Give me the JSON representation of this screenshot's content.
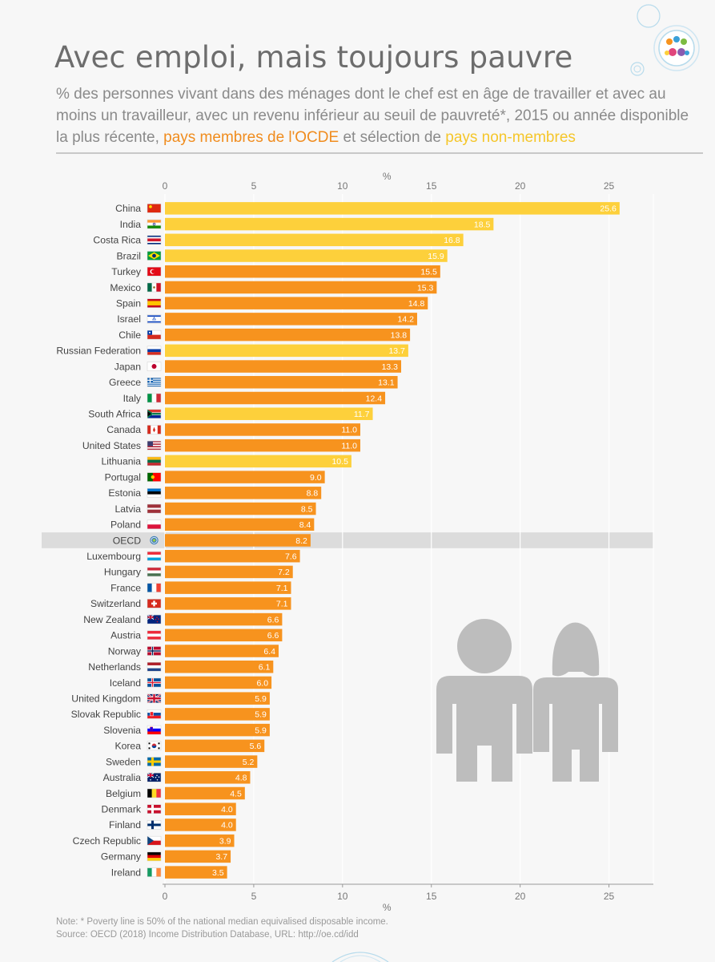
{
  "header": {
    "title": "Avec emploi, mais toujours pauvre",
    "subtitle_part1": "% des personnes vivant dans des ménages dont le chef est en âge de travailler et avec au moins un travailleur, avec un revenu inférieur au seuil de pauvreté*, 2015 ou année disponible la plus récente, ",
    "subtitle_oecd": "pays membres de l'OCDE",
    "subtitle_part2": " et sélection de ",
    "subtitle_non": "pays non-membres"
  },
  "notes": {
    "note": "Note: * Poverty line is 50% of the national median equivalised disposable income.",
    "source": "Source: OECD (2018) Income Distribution Database, URL: http://oe.cd/idd"
  },
  "colors": {
    "oecd": "#f7931e",
    "non_member": "#fdd03b",
    "highlight_row": "#dcdcdc",
    "grid": "#ffffff",
    "figure": "#bdbdbd"
  },
  "chart_data": {
    "type": "bar",
    "orientation": "horizontal",
    "xlabel": "%",
    "xlim": [
      0,
      27.5
    ],
    "ticks": [
      0,
      5,
      10,
      15,
      20,
      25
    ],
    "series": [
      {
        "name": "pays membres de l'OCDE",
        "color_key": "oecd"
      },
      {
        "name": "pays non-membres",
        "color_key": "non_member"
      }
    ],
    "bars": [
      {
        "country": "China",
        "value": 25.6,
        "label": "25.6",
        "group": "non_member",
        "flag": "cn"
      },
      {
        "country": "India",
        "value": 18.5,
        "label": "18.5",
        "group": "non_member",
        "flag": "in"
      },
      {
        "country": "Costa Rica",
        "value": 16.8,
        "label": "16.8",
        "group": "non_member",
        "flag": "cr"
      },
      {
        "country": "Brazil",
        "value": 15.9,
        "label": "15.9",
        "group": "non_member",
        "flag": "br"
      },
      {
        "country": "Turkey",
        "value": 15.5,
        "label": "15.5",
        "group": "oecd",
        "flag": "tr"
      },
      {
        "country": "Mexico",
        "value": 15.3,
        "label": "15.3",
        "group": "oecd",
        "flag": "mx"
      },
      {
        "country": "Spain",
        "value": 14.8,
        "label": "14.8",
        "group": "oecd",
        "flag": "es"
      },
      {
        "country": "Israel",
        "value": 14.2,
        "label": "14.2",
        "group": "oecd",
        "flag": "il"
      },
      {
        "country": "Chile",
        "value": 13.8,
        "label": "13.8",
        "group": "oecd",
        "flag": "cl"
      },
      {
        "country": "Russian Federation",
        "value": 13.7,
        "label": "13.7",
        "group": "non_member",
        "flag": "ru"
      },
      {
        "country": "Japan",
        "value": 13.3,
        "label": "13.3",
        "group": "oecd",
        "flag": "jp"
      },
      {
        "country": "Greece",
        "value": 13.1,
        "label": "13.1",
        "group": "oecd",
        "flag": "gr"
      },
      {
        "country": "Italy",
        "value": 12.4,
        "label": "12.4",
        "group": "oecd",
        "flag": "it"
      },
      {
        "country": "South Africa",
        "value": 11.7,
        "label": "11.7",
        "group": "non_member",
        "flag": "za"
      },
      {
        "country": "Canada",
        "value": 11.0,
        "label": "11.0",
        "group": "oecd",
        "flag": "ca"
      },
      {
        "country": "United States",
        "value": 11.0,
        "label": "11.0",
        "group": "oecd",
        "flag": "us"
      },
      {
        "country": "Lithuania",
        "value": 10.5,
        "label": "10.5",
        "group": "non_member",
        "flag": "lt"
      },
      {
        "country": "Portugal",
        "value": 9.0,
        "label": "9.0",
        "group": "oecd",
        "flag": "pt"
      },
      {
        "country": "Estonia",
        "value": 8.8,
        "label": "8.8",
        "group": "oecd",
        "flag": "ee"
      },
      {
        "country": "Latvia",
        "value": 8.5,
        "label": "8.5",
        "group": "oecd",
        "flag": "lv"
      },
      {
        "country": "Poland",
        "value": 8.4,
        "label": "8.4",
        "group": "oecd",
        "flag": "pl"
      },
      {
        "country": "OECD",
        "value": 8.2,
        "label": "8.2",
        "group": "oecd",
        "flag": "oecd",
        "highlight": true
      },
      {
        "country": "Luxembourg",
        "value": 7.6,
        "label": "7.6",
        "group": "oecd",
        "flag": "lu"
      },
      {
        "country": "Hungary",
        "value": 7.2,
        "label": "7.2",
        "group": "oecd",
        "flag": "hu"
      },
      {
        "country": "France",
        "value": 7.1,
        "label": "7.1",
        "group": "oecd",
        "flag": "fr"
      },
      {
        "country": "Switzerland",
        "value": 7.1,
        "label": "7.1",
        "group": "oecd",
        "flag": "ch"
      },
      {
        "country": "New Zealand",
        "value": 6.6,
        "label": "6.6",
        "group": "oecd",
        "flag": "nz"
      },
      {
        "country": "Austria",
        "value": 6.6,
        "label": "6.6",
        "group": "oecd",
        "flag": "at"
      },
      {
        "country": "Norway",
        "value": 6.4,
        "label": "6.4",
        "group": "oecd",
        "flag": "no"
      },
      {
        "country": "Netherlands",
        "value": 6.1,
        "label": "6.1",
        "group": "oecd",
        "flag": "nl"
      },
      {
        "country": "Iceland",
        "value": 6.0,
        "label": "6.0",
        "group": "oecd",
        "flag": "is"
      },
      {
        "country": "United Kingdom",
        "value": 5.9,
        "label": "5.9",
        "group": "oecd",
        "flag": "gb"
      },
      {
        "country": "Slovak Republic",
        "value": 5.9,
        "label": "5.9",
        "group": "oecd",
        "flag": "sk"
      },
      {
        "country": "Slovenia",
        "value": 5.9,
        "label": "5.9",
        "group": "oecd",
        "flag": "si"
      },
      {
        "country": "Korea",
        "value": 5.6,
        "label": "5.6",
        "group": "oecd",
        "flag": "kr"
      },
      {
        "country": "Sweden",
        "value": 5.2,
        "label": "5.2",
        "group": "oecd",
        "flag": "se"
      },
      {
        "country": "Australia",
        "value": 4.8,
        "label": "4.8",
        "group": "oecd",
        "flag": "au"
      },
      {
        "country": "Belgium",
        "value": 4.5,
        "label": "4.5",
        "group": "oecd",
        "flag": "be"
      },
      {
        "country": "Denmark",
        "value": 4.0,
        "label": "4.0",
        "group": "oecd",
        "flag": "dk"
      },
      {
        "country": "Finland",
        "value": 4.0,
        "label": "4.0",
        "group": "oecd",
        "flag": "fi"
      },
      {
        "country": "Czech Republic",
        "value": 3.9,
        "label": "3.9",
        "group": "oecd",
        "flag": "cz"
      },
      {
        "country": "Germany",
        "value": 3.7,
        "label": "3.7",
        "group": "oecd",
        "flag": "de"
      },
      {
        "country": "Ireland",
        "value": 3.5,
        "label": "3.5",
        "group": "oecd",
        "flag": "ie"
      }
    ]
  }
}
